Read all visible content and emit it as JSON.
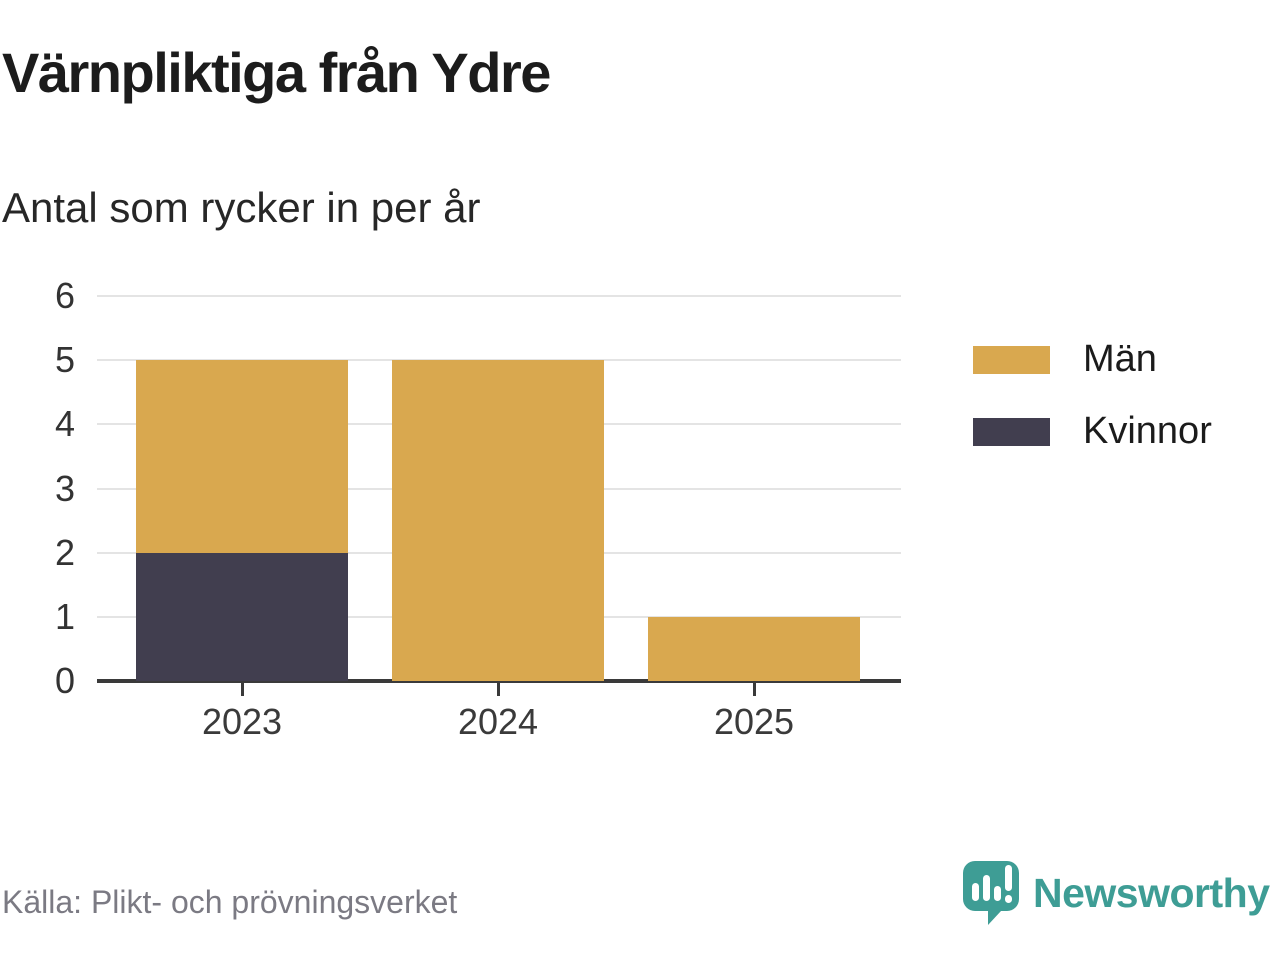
{
  "header": {
    "title": "Värnpliktiga från Ydre",
    "subtitle": "Antal som rycker in per år"
  },
  "chart_data": {
    "type": "bar",
    "stacked": true,
    "title": "Värnpliktiga från Ydre",
    "subtitle": "Antal som rycker in per år",
    "categories": [
      "2023",
      "2024",
      "2025"
    ],
    "series": [
      {
        "name": "Män",
        "color": "#d9a84f",
        "values": [
          3,
          5,
          1
        ]
      },
      {
        "name": "Kvinnor",
        "color": "#413e4f",
        "values": [
          2,
          0,
          0
        ]
      }
    ],
    "stack_order_bottom_to_top": [
      "Kvinnor",
      "Män"
    ],
    "stack_totals": [
      5,
      5,
      1
    ],
    "xlabel": "",
    "ylabel": "",
    "ylim": [
      0,
      6
    ],
    "yticks": [
      0,
      1,
      2,
      3,
      4,
      5,
      6
    ],
    "grid": true,
    "legend_position": "right"
  },
  "footer": {
    "source": "Källa: Plikt- och prövningsverket",
    "brand": "Newsworthy"
  },
  "colors": {
    "men_bar": "#d9a84f",
    "women_bar": "#413e4f",
    "brand_teal": "#3e9d95",
    "axis": "#3a3a3a",
    "gridline": "#e4e4e4",
    "title_text": "#1c1c1c",
    "tick_text": "#333333",
    "source_text": "#7b7a83"
  },
  "icons": {
    "logo": "newsworthy-speech-bubble-bar-chart-icon"
  }
}
